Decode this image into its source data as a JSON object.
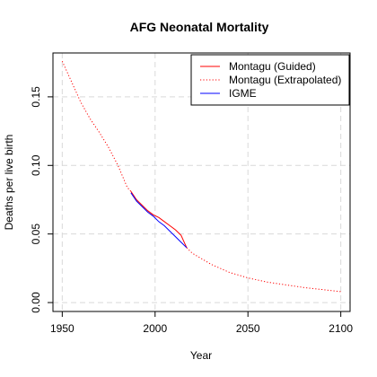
{
  "chart_data": {
    "type": "line",
    "title": "AFG Neonatal Mortality",
    "xlabel": "Year",
    "ylabel": "Deaths per live birth",
    "xlim": [
      1945,
      2105
    ],
    "ylim": [
      -0.0065,
      0.182
    ],
    "xticks": [
      1950,
      2000,
      2050,
      2100
    ],
    "yticks": [
      0.0,
      0.05,
      0.1,
      0.15
    ],
    "ytick_labels": [
      "0.00",
      "0.05",
      "0.10",
      "0.15"
    ],
    "grid": true,
    "legend_position": "top-right",
    "series": [
      {
        "name": "Montagu (Guided)",
        "color": "#ff0000",
        "style": "solid",
        "x": [
          1987,
          1990,
          1993,
          1996,
          1999,
          2002,
          2005,
          2008,
          2011,
          2014,
          2017
        ],
        "y": [
          0.081,
          0.075,
          0.071,
          0.067,
          0.064,
          0.062,
          0.059,
          0.056,
          0.053,
          0.049,
          0.04
        ]
      },
      {
        "name": "Montagu (Extrapolated)",
        "color": "#ff0000",
        "style": "dotted",
        "x": [
          1950,
          1955,
          1960,
          1965,
          1970,
          1975,
          1980,
          1985,
          1987,
          2017,
          2020,
          2025,
          2030,
          2035,
          2040,
          2045,
          2050,
          2060,
          2070,
          2080,
          2090,
          2100
        ],
        "y": [
          0.176,
          0.161,
          0.146,
          0.134,
          0.124,
          0.113,
          0.1,
          0.084,
          0.081,
          0.04,
          0.036,
          0.032,
          0.028,
          0.025,
          0.022,
          0.02,
          0.018,
          0.015,
          0.013,
          0.011,
          0.0095,
          0.008
        ]
      },
      {
        "name": "IGME",
        "color": "#0000ff",
        "style": "solid",
        "x": [
          1987,
          1990,
          1993,
          1996,
          1999,
          2002,
          2005,
          2008,
          2011,
          2014,
          2017
        ],
        "y": [
          0.08,
          0.074,
          0.07,
          0.066,
          0.063,
          0.059,
          0.056,
          0.052,
          0.048,
          0.044,
          0.04
        ]
      }
    ]
  }
}
